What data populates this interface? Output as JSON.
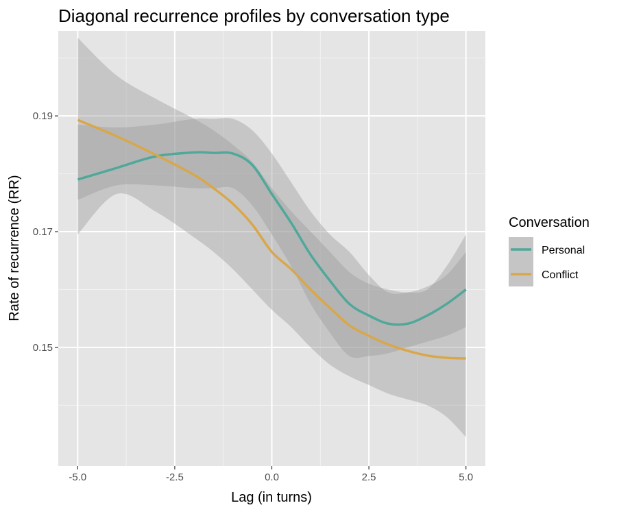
{
  "chart_data": {
    "type": "line",
    "title": "Diagonal recurrence profiles by conversation type",
    "xlabel": "Lag (in turns)",
    "ylabel": "Rate of recurrence (RR)",
    "xlim": [
      -5.5,
      5.5
    ],
    "ylim": [
      0.1295,
      0.2047
    ],
    "x_ticks": [
      -5.0,
      -2.5,
      0.0,
      2.5,
      5.0
    ],
    "x_tick_labels": [
      "-5.0",
      "-2.5",
      "0.0",
      "2.5",
      "5.0"
    ],
    "y_ticks": [
      0.15,
      0.17,
      0.19
    ],
    "y_tick_labels": [
      "0.15",
      "0.17",
      "0.19"
    ],
    "grid": true,
    "legend": {
      "title": "Conversation",
      "position": "right"
    },
    "series": [
      {
        "name": "Personal",
        "color": "#4fa89a",
        "x": [
          -5,
          -4,
          -3,
          -2,
          -1.5,
          -1,
          -0.5,
          0,
          0.5,
          1,
          1.5,
          2,
          2.5,
          3,
          3.5,
          4,
          4.5,
          5
        ],
        "y": [
          0.179,
          0.181,
          0.183,
          0.1837,
          0.1836,
          0.1835,
          0.1815,
          0.1765,
          0.1715,
          0.166,
          0.1615,
          0.1575,
          0.1555,
          0.1541,
          0.1541,
          0.1555,
          0.1575,
          0.16
        ],
        "lower": [
          0.1755,
          0.178,
          0.178,
          0.1775,
          0.1775,
          0.1775,
          0.1745,
          0.1695,
          0.164,
          0.1575,
          0.1525,
          0.1485,
          0.1485,
          0.149,
          0.15,
          0.151,
          0.152,
          0.1535
        ],
        "upper": [
          0.1885,
          0.188,
          0.1885,
          0.1895,
          0.1895,
          0.1895,
          0.1875,
          0.1835,
          0.1785,
          0.1735,
          0.1695,
          0.1665,
          0.1625,
          0.1595,
          0.1595,
          0.1605,
          0.1625,
          0.1665
        ]
      },
      {
        "name": "Conflict",
        "color": "#d9a74a",
        "x": [
          -5,
          -4,
          -3,
          -2,
          -1.5,
          -1,
          -0.5,
          0,
          0.5,
          1,
          1.5,
          2,
          2.5,
          3,
          3.5,
          4,
          4.5,
          5
        ],
        "y": [
          0.1893,
          0.1865,
          0.1833,
          0.1798,
          0.1775,
          0.1748,
          0.1712,
          0.1665,
          0.1635,
          0.16,
          0.1568,
          0.1538,
          0.152,
          0.1505,
          0.1494,
          0.1486,
          0.1482,
          0.1481
        ],
        "lower": [
          0.1695,
          0.1765,
          0.1735,
          0.169,
          0.1665,
          0.1635,
          0.16,
          0.1565,
          0.1535,
          0.15,
          0.147,
          0.145,
          0.1435,
          0.142,
          0.141,
          0.14,
          0.138,
          0.1345
        ],
        "upper": [
          0.2035,
          0.197,
          0.193,
          0.1895,
          0.1875,
          0.185,
          0.182,
          0.1775,
          0.1735,
          0.17,
          0.1665,
          0.163,
          0.161,
          0.16,
          0.1595,
          0.16,
          0.164,
          0.1695
        ]
      }
    ]
  }
}
